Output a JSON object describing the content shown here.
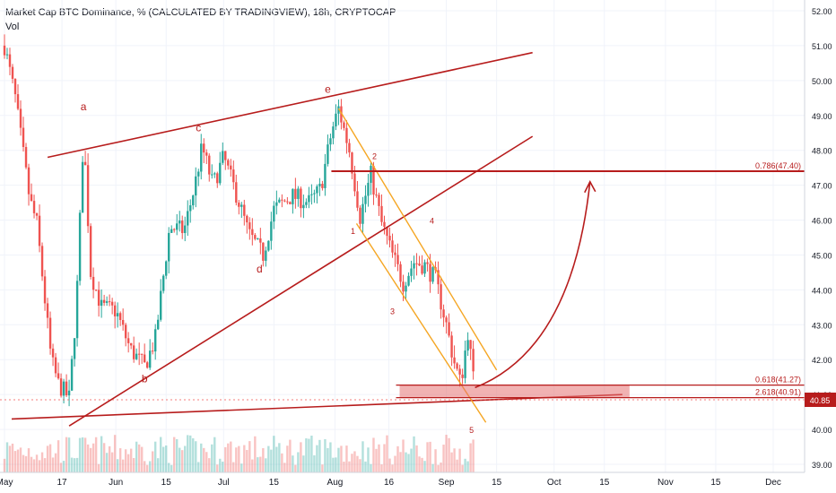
{
  "header": {
    "title": "Market Cap BTC Dominance, % (CALCULATED BY TRADINGVIEW), 18h, CRYPTOCAP",
    "volume_label": "Vol"
  },
  "colors": {
    "up": "#26a69a",
    "down": "#ef5350",
    "annotation": "#b71c1c",
    "channel": "#f5a623",
    "zone": "#e57373",
    "axis_text": "#131722",
    "grid": "#f0f3fa"
  },
  "chart_data": {
    "type": "candlestick",
    "y_axis": {
      "ticks": [
        "52.00",
        "51.00",
        "50.00",
        "49.00",
        "48.00",
        "47.00",
        "46.00",
        "45.00",
        "44.00",
        "43.00",
        "42.00",
        "41.00",
        "40.00",
        "39.00"
      ],
      "range": [
        39.0,
        52.0
      ]
    },
    "x_axis": {
      "ticks": [
        "May",
        "17",
        "Jun",
        "15",
        "Jul",
        "15",
        "Aug",
        "16",
        "Sep",
        "15",
        "Oct",
        "15",
        "Nov",
        "15",
        "Dec"
      ]
    },
    "price_path": [
      [
        "2021-05-01",
        51.0
      ],
      [
        "2021-05-04",
        49.5
      ],
      [
        "2021-05-08",
        46.6
      ],
      [
        "2021-05-10",
        45.9
      ],
      [
        "2021-05-14",
        42.0
      ],
      [
        "2021-05-16",
        41.3
      ],
      [
        "2021-05-19",
        40.9
      ],
      [
        "2021-05-21",
        43.5
      ],
      [
        "2021-05-23",
        48.5
      ],
      [
        "2021-05-25",
        44.5
      ],
      [
        "2021-05-28",
        43.5
      ],
      [
        "2021-06-01",
        43.4
      ],
      [
        "2021-06-05",
        42.3
      ],
      [
        "2021-06-09",
        41.8
      ],
      [
        "2021-06-12",
        42.6
      ],
      [
        "2021-06-16",
        45.8
      ],
      [
        "2021-06-20",
        45.7
      ],
      [
        "2021-06-23",
        47.0
      ],
      [
        "2021-06-25",
        48.1
      ],
      [
        "2021-06-28",
        47.0
      ],
      [
        "2021-07-01",
        47.8
      ],
      [
        "2021-07-05",
        46.6
      ],
      [
        "2021-07-08",
        45.6
      ],
      [
        "2021-07-12",
        45.0
      ],
      [
        "2021-07-15",
        46.3
      ],
      [
        "2021-07-20",
        46.7
      ],
      [
        "2021-07-25",
        46.5
      ],
      [
        "2021-07-28",
        46.9
      ],
      [
        "2021-07-31",
        48.5
      ],
      [
        "2021-08-02",
        49.2
      ],
      [
        "2021-08-05",
        48.0
      ],
      [
        "2021-08-08",
        46.1
      ],
      [
        "2021-08-11",
        47.3
      ],
      [
        "2021-08-14",
        45.9
      ],
      [
        "2021-08-17",
        45.0
      ],
      [
        "2021-08-20",
        44.2
      ],
      [
        "2021-08-23",
        44.8
      ],
      [
        "2021-08-26",
        44.7
      ],
      [
        "2021-08-29",
        44.3
      ],
      [
        "2021-09-01",
        43.0
      ],
      [
        "2021-09-03",
        42.0
      ],
      [
        "2021-09-05",
        41.3
      ],
      [
        "2021-09-07",
        42.8
      ],
      [
        "2021-09-09",
        41.0
      ]
    ],
    "last_price": "40.85",
    "annotations": {
      "wave_labels": [
        "a",
        "b",
        "c",
        "d",
        "e"
      ],
      "impulse_labels": [
        "1",
        "2",
        "3",
        "4",
        "5"
      ],
      "fib_levels": [
        {
          "label": "0.786(47.40)",
          "value": 47.4
        },
        {
          "label": "0.618(41.27)",
          "value": 41.27
        },
        {
          "label": "2.618(40.91)",
          "value": 40.91
        }
      ]
    }
  }
}
